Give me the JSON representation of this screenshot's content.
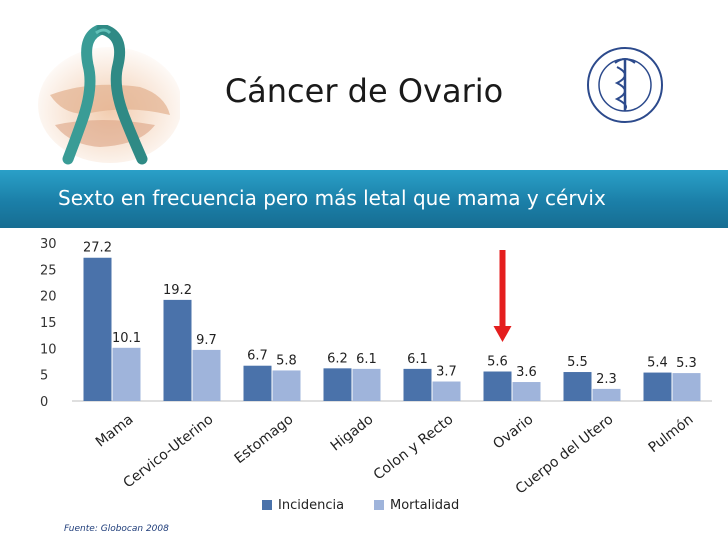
{
  "slide": {
    "title": "Cáncer de Ovario",
    "banner": "Sexto en frecuencia  pero más letal que mama y cérvix",
    "source": "Fuente:  Globocan 2008"
  },
  "colors": {
    "incidencia": "#4a72aa",
    "mortalidad": "#9fb4db",
    "banner": "#1b7fa8",
    "arrow": "#e41e1e",
    "ribbon": "#3a9c96"
  },
  "icons": {
    "photo": "ribbon-photo-icon",
    "seal": "institute-seal-icon",
    "arrow": "down-arrow-icon"
  },
  "chart_data": {
    "type": "bar",
    "categories": [
      "Mama",
      "Cervico-Uterino",
      "Estomago",
      "Higado",
      "Colon y Recto",
      "Ovario",
      "Cuerpo del Utero",
      "Pulmón"
    ],
    "series": [
      {
        "name": "Incidencia",
        "values": [
          27.2,
          19.2,
          6.7,
          6.2,
          6.1,
          5.6,
          5.5,
          5.4
        ]
      },
      {
        "name": "Mortalidad",
        "values": [
          10.1,
          9.7,
          5.8,
          6.1,
          3.7,
          3.6,
          2.3,
          5.3
        ]
      }
    ],
    "data_labels": {
      "Incidencia": [
        "27.2",
        "19.2",
        "6.7",
        "6.2",
        "6.1",
        "5.6",
        "5.5",
        "5.4"
      ],
      "Mortalidad": [
        "10.1",
        "9.7",
        "5.8",
        "6.1",
        "3.7",
        "3.6",
        "2.3",
        "5.3"
      ]
    },
    "yticks": [
      "0",
      "5",
      "10",
      "15",
      "20",
      "25",
      "30"
    ],
    "ylim": [
      0,
      30
    ],
    "highlight_category": "Ovario",
    "legend_position": "bottom",
    "grid": false
  }
}
